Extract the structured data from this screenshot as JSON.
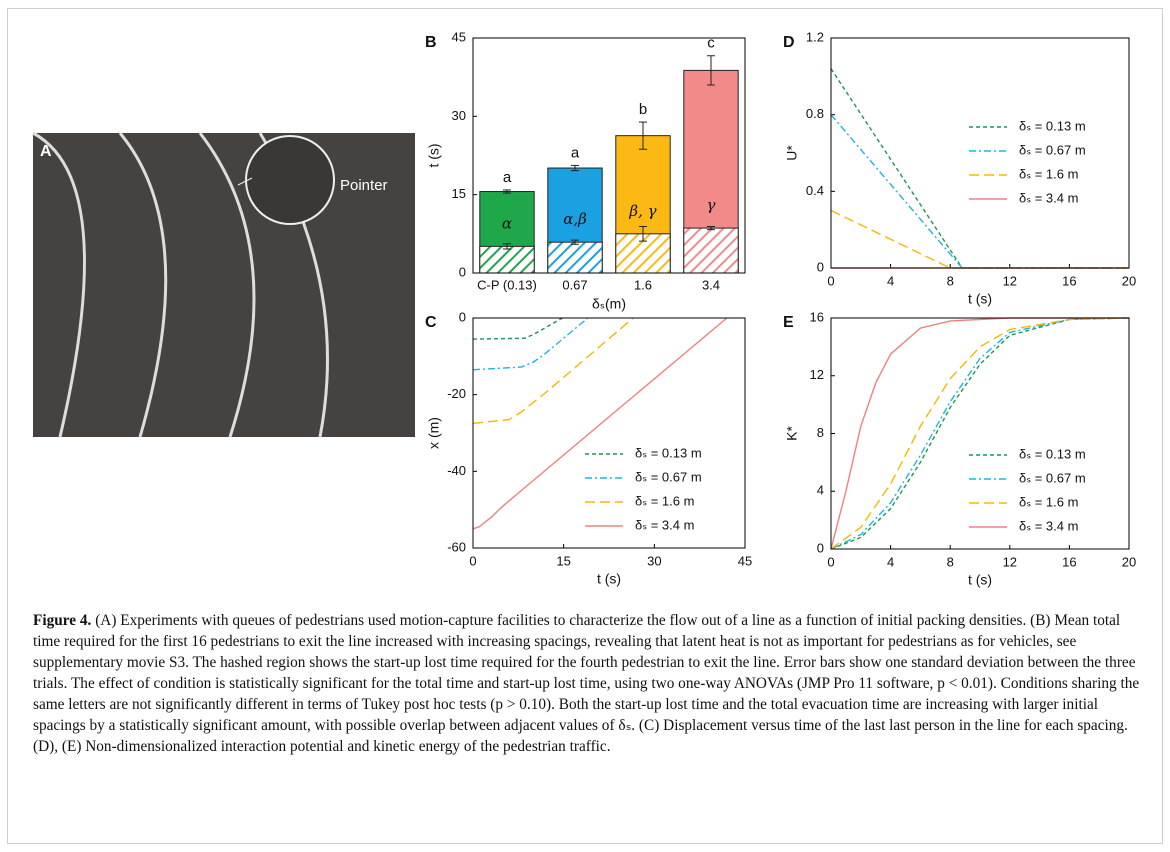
{
  "photo": {
    "panel": "A",
    "label": "Pointer"
  },
  "chart_data": [
    {
      "type": "bar",
      "panel": "B",
      "ylabel": "t (s)",
      "xlabel": "δₛ(m)",
      "categories": [
        "C-P (0.13)",
        "0.67",
        "1.6",
        "3.4"
      ],
      "colors": [
        "#1fa84a",
        "#1ba1e2",
        "#fdb913",
        "#f28a8a"
      ],
      "series": [
        {
          "values": [
            15.6,
            20.1,
            26.3,
            38.8
          ],
          "errors": [
            0.3,
            0.5,
            2.6,
            2.8
          ]
        },
        {
          "values": [
            5.1,
            5.9,
            7.5,
            8.6
          ],
          "errors": [
            0.5,
            0.4,
            1.4,
            0.3
          ],
          "hatch": true
        }
      ],
      "annotations_top": [
        "a",
        "a",
        "b",
        "c"
      ],
      "annotations_inner": [
        "α",
        "α,β",
        "β, γ",
        "γ"
      ],
      "ylim": [
        0,
        45
      ],
      "yticks": [
        0,
        15,
        30,
        45
      ]
    },
    {
      "type": "line",
      "panel": "C",
      "ylabel": "x (m)",
      "xlabel": "t (s)",
      "xlim": [
        0,
        45
      ],
      "xticks": [
        0,
        15,
        30,
        45
      ],
      "ylim": [
        -60,
        0
      ],
      "yticks": [
        -60,
        -40,
        -20,
        0
      ],
      "legend": "lower right",
      "series": [
        {
          "name": "δₛ = 0.13 m",
          "color": "#1a9850",
          "dash": "4,3",
          "x": [
            0,
            8.5,
            10,
            14.8
          ],
          "values": [
            -5.5,
            -5.3,
            -4.3,
            0
          ]
        },
        {
          "name": "δₛ = 0.67 m",
          "color": "#1eb4e6",
          "dash": "7,3,2,3",
          "x": [
            0,
            8,
            10,
            12,
            19
          ],
          "values": [
            -13.5,
            -12.8,
            -11.5,
            -9.2,
            0
          ]
        },
        {
          "name": "δₛ = 1.6 m",
          "color": "#f5b800",
          "dash": "10,5",
          "x": [
            0,
            6,
            8,
            10,
            12,
            26.5
          ],
          "values": [
            -27.5,
            -26.5,
            -24.5,
            -22,
            -19.5,
            0
          ]
        },
        {
          "name": "δₛ = 3.4 m",
          "color": "#f08080",
          "dash": "none",
          "x": [
            0,
            1,
            3,
            5,
            8,
            42
          ],
          "values": [
            -55,
            -54.5,
            -52,
            -49,
            -45,
            0
          ]
        }
      ]
    },
    {
      "type": "line",
      "panel": "D",
      "ylabel": "U*",
      "xlabel": "t (s)",
      "xlim": [
        0,
        20
      ],
      "xticks": [
        0,
        4,
        8,
        12,
        16,
        20
      ],
      "ylim": [
        0,
        1.2
      ],
      "yticks": [
        0,
        0.4,
        0.8,
        1.2
      ],
      "legend": "center right",
      "series": [
        {
          "name": "δₛ = 0.13 m",
          "color": "#1a9850",
          "dash": "4,3",
          "x": [
            0,
            8.8,
            20
          ],
          "values": [
            1.04,
            0,
            0
          ]
        },
        {
          "name": "δₛ = 0.67 m",
          "color": "#1eb4e6",
          "dash": "7,3,2,3",
          "x": [
            0,
            8.8,
            20
          ],
          "values": [
            0.8,
            0,
            0
          ]
        },
        {
          "name": "δₛ = 1.6 m",
          "color": "#f5b800",
          "dash": "10,5",
          "x": [
            0,
            8,
            20
          ],
          "values": [
            0.3,
            0,
            0
          ]
        },
        {
          "name": "δₛ = 3.4 m",
          "color": "#f08080",
          "dash": "none",
          "x": [
            0,
            20
          ],
          "values": [
            0,
            0
          ]
        }
      ]
    },
    {
      "type": "line",
      "panel": "E",
      "ylabel": "K*",
      "xlabel": "t (s)",
      "xlim": [
        0,
        20
      ],
      "xticks": [
        0,
        4,
        8,
        12,
        16,
        20
      ],
      "ylim": [
        0,
        16
      ],
      "yticks": [
        0,
        4,
        8,
        12,
        16
      ],
      "legend": "lower right",
      "series": [
        {
          "name": "δₛ = 0.13 m",
          "color": "#1a9850",
          "dash": "4,3",
          "x": [
            0,
            2,
            4,
            6,
            8,
            10,
            12,
            16,
            20
          ],
          "values": [
            0,
            0.8,
            2.8,
            6,
            9.8,
            12.8,
            14.8,
            15.9,
            16
          ]
        },
        {
          "name": "δₛ = 0.67 m",
          "color": "#1eb4e6",
          "dash": "7,3,2,3",
          "x": [
            0,
            2,
            4,
            6,
            8,
            10,
            12,
            16,
            20
          ],
          "values": [
            0,
            1,
            3.2,
            6.5,
            10.2,
            13.2,
            15,
            15.9,
            16
          ]
        },
        {
          "name": "δₛ = 1.6 m",
          "color": "#f5b800",
          "dash": "10,5",
          "x": [
            0,
            2,
            4,
            6,
            8,
            10,
            12,
            16,
            20
          ],
          "values": [
            0,
            1.5,
            4.5,
            8.5,
            11.8,
            14,
            15.2,
            15.9,
            16
          ]
        },
        {
          "name": "δₛ = 3.4 m",
          "color": "#f08080",
          "dash": "none",
          "x": [
            0,
            1,
            2,
            3,
            4,
            6,
            8,
            12,
            20
          ],
          "values": [
            0,
            4,
            8.5,
            11.5,
            13.5,
            15.3,
            15.8,
            16,
            16
          ]
        }
      ]
    }
  ],
  "caption": {
    "label": "Figure 4.",
    "text": "(A) Experiments with queues of pedestrians used motion-capture facilities to characterize the flow out of a line as a function of initial packing densities. (B) Mean total time required for the first 16 pedestrians to exit the line increased with increasing spacings, revealing that latent heat is not as important for pedestrians as for vehicles, see supplementary movie S3. The hashed region shows the start-up lost time required for the fourth pedestrian to exit the line. Error bars show one standard deviation between the three trials. The effect of condition is statistically significant for the total time and start-up lost time, using two one-way ANOVAs (JMP Pro 11 software, p < 0.01). Conditions sharing the same letters are not significantly different in terms of Tukey post hoc tests (p > 0.10). Both the start-up lost time and the total evacuation time are increasing with larger initial spacings by a statistically significant amount, with possible overlap between adjacent values of δₛ. (C) Displacement versus time of the last last person in the line for each spacing. (D), (E) Non-dimensionalized interaction potential and kinetic energy of the pedestrian traffic."
  }
}
